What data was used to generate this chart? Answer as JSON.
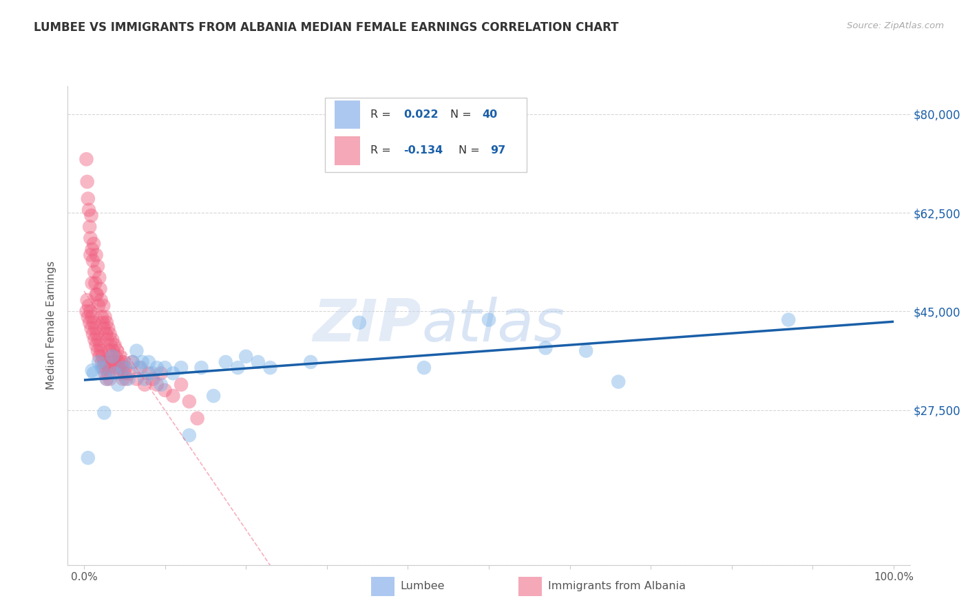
{
  "title": "LUMBEE VS IMMIGRANTS FROM ALBANIA MEDIAN FEMALE EARNINGS CORRELATION CHART",
  "source": "Source: ZipAtlas.com",
  "ylabel": "Median Female Earnings",
  "xlim": [
    -0.02,
    1.02
  ],
  "ylim": [
    0,
    85000
  ],
  "y_ticks": [
    0,
    27500,
    45000,
    62500,
    80000
  ],
  "y_tick_labels_right": [
    "",
    "$27,500",
    "$45,000",
    "$62,500",
    "$80,000"
  ],
  "lumbee_color": "#7ab3e8",
  "albania_color": "#f06080",
  "lumbee_swatch": "#adc8f0",
  "albania_swatch": "#f4a8b8",
  "watermark_zip": "ZIP",
  "watermark_atlas": "atlas",
  "lumbee_x": [
    0.005,
    0.012,
    0.018,
    0.022,
    0.028,
    0.035,
    0.038,
    0.042,
    0.048,
    0.055,
    0.06,
    0.065,
    0.068,
    0.072,
    0.075,
    0.08,
    0.085,
    0.09,
    0.095,
    0.1,
    0.11,
    0.12,
    0.13,
    0.145,
    0.16,
    0.175,
    0.19,
    0.2,
    0.215,
    0.23,
    0.28,
    0.34,
    0.42,
    0.5,
    0.57,
    0.62,
    0.66,
    0.87,
    0.01,
    0.025
  ],
  "lumbee_y": [
    19000,
    34000,
    36000,
    35000,
    33000,
    37000,
    34000,
    32000,
    35000,
    33000,
    36000,
    38000,
    35000,
    36000,
    33000,
    36000,
    34000,
    35000,
    32000,
    35000,
    34000,
    35000,
    23000,
    35000,
    30000,
    36000,
    35000,
    37000,
    36000,
    35000,
    36000,
    43000,
    35000,
    43500,
    38500,
    38000,
    32500,
    43500,
    34500,
    27000
  ],
  "albania_x": [
    0.003,
    0.004,
    0.005,
    0.006,
    0.007,
    0.008,
    0.009,
    0.01,
    0.011,
    0.012,
    0.013,
    0.014,
    0.015,
    0.016,
    0.017,
    0.018,
    0.019,
    0.02,
    0.021,
    0.022,
    0.023,
    0.024,
    0.025,
    0.026,
    0.027,
    0.028,
    0.029,
    0.03,
    0.031,
    0.032,
    0.033,
    0.034,
    0.035,
    0.036,
    0.037,
    0.038,
    0.039,
    0.04,
    0.041,
    0.042,
    0.043,
    0.044,
    0.045,
    0.046,
    0.047,
    0.048,
    0.049,
    0.05,
    0.051,
    0.052,
    0.003,
    0.004,
    0.005,
    0.006,
    0.007,
    0.008,
    0.009,
    0.01,
    0.011,
    0.012,
    0.013,
    0.014,
    0.015,
    0.016,
    0.017,
    0.018,
    0.019,
    0.02,
    0.021,
    0.022,
    0.023,
    0.024,
    0.025,
    0.026,
    0.027,
    0.028,
    0.029,
    0.03,
    0.031,
    0.032,
    0.055,
    0.06,
    0.065,
    0.07,
    0.075,
    0.08,
    0.085,
    0.09,
    0.095,
    0.1,
    0.11,
    0.12,
    0.13,
    0.14,
    0.008,
    0.01,
    0.015
  ],
  "albania_y": [
    72000,
    68000,
    65000,
    63000,
    60000,
    58000,
    62000,
    56000,
    54000,
    57000,
    52000,
    50000,
    55000,
    48000,
    53000,
    46000,
    51000,
    49000,
    47000,
    44000,
    43000,
    46000,
    42000,
    44000,
    41000,
    43000,
    40000,
    42000,
    38000,
    41000,
    39000,
    37000,
    40000,
    38000,
    36000,
    39000,
    37000,
    35000,
    38000,
    36000,
    35000,
    37000,
    34000,
    36000,
    35000,
    33000,
    36000,
    34000,
    35000,
    33000,
    45000,
    47000,
    44000,
    46000,
    43000,
    45000,
    42000,
    44000,
    41000,
    43000,
    40000,
    42000,
    39000,
    41000,
    38000,
    40000,
    37000,
    39000,
    38000,
    36000,
    37000,
    35000,
    36000,
    34000,
    35000,
    33000,
    36000,
    34000,
    35000,
    33000,
    34000,
    36000,
    33000,
    35000,
    32000,
    34000,
    33000,
    32000,
    34000,
    31000,
    30000,
    32000,
    29000,
    26000,
    55000,
    50000,
    48000
  ],
  "lumbee_trend_color": "#1a5fa8",
  "albania_trend_color": "#f06080",
  "grid_color": "#cccccc",
  "spine_color": "#cccccc",
  "text_color": "#555555",
  "title_color": "#333333",
  "source_color": "#aaaaaa",
  "legend_border_color": "#cccccc",
  "right_label_color": "#1a5fa8",
  "bottom_label_color": "#555555"
}
